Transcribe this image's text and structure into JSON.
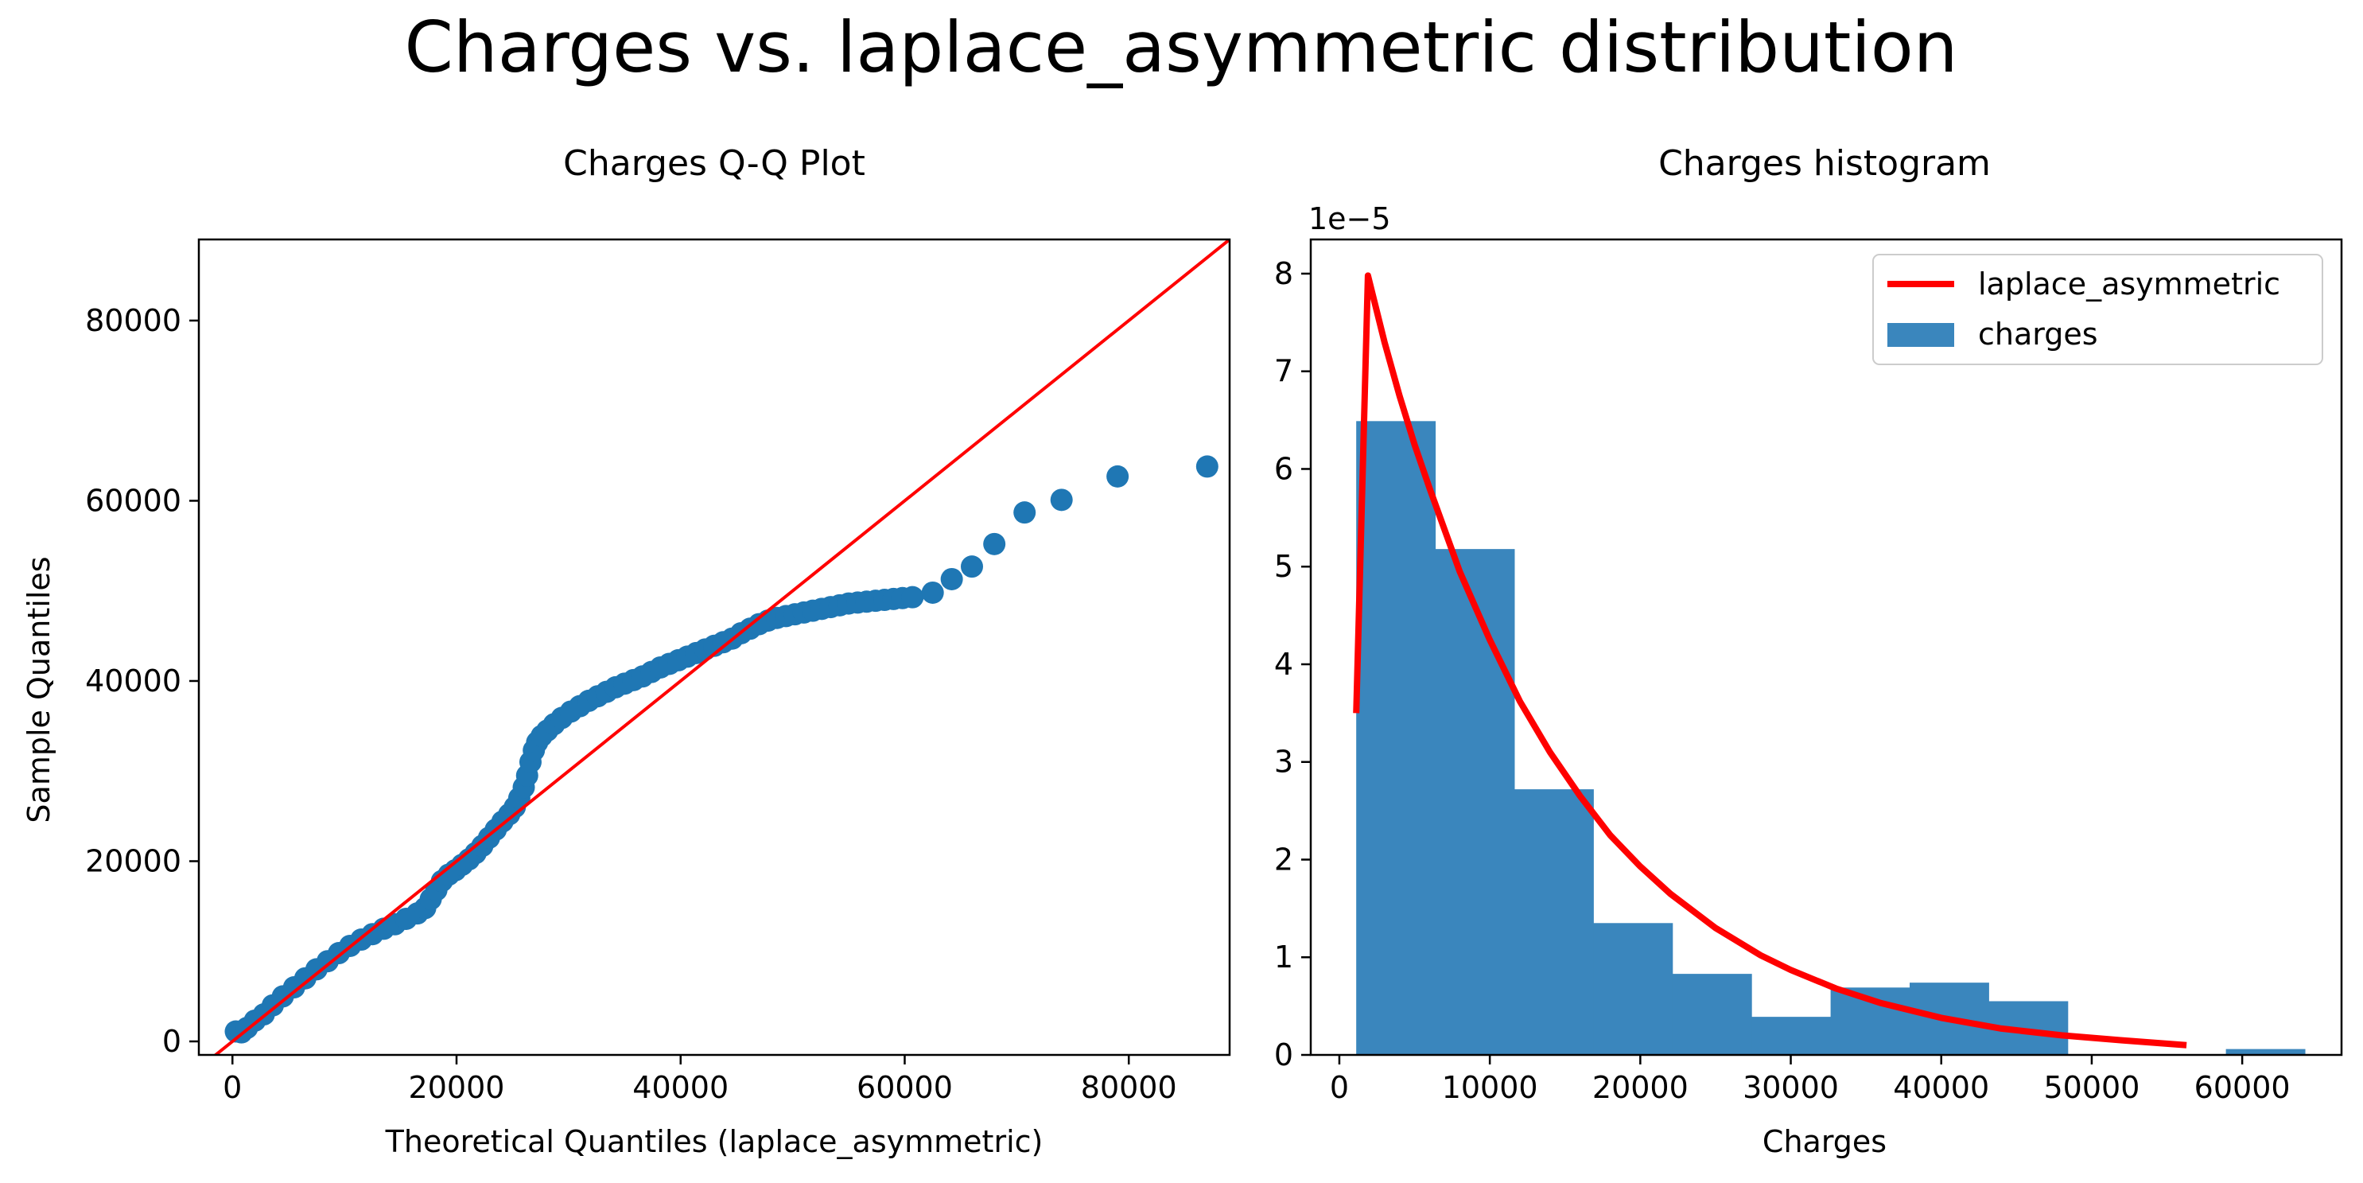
{
  "figure": {
    "title": "Charges vs. laplace_asymmetric distribution"
  },
  "colors": {
    "points": "#1f77b4",
    "bars": "#3a86bd",
    "line": "#ff0000"
  },
  "chart_data": [
    {
      "type": "scatter",
      "title": "Charges Q-Q Plot",
      "xlabel": "Theoretical Quantiles (laplace_asymmetric)",
      "ylabel": "Sample Quantiles",
      "xlim": [
        -3000,
        89000
      ],
      "ylim": [
        -1500,
        89000
      ],
      "xticks": [
        0,
        20000,
        40000,
        60000,
        80000
      ],
      "yticks": [
        0,
        20000,
        40000,
        60000,
        80000
      ],
      "reference_line": {
        "x": [
          -3000,
          89000
        ],
        "y": [
          -3000,
          89000
        ]
      },
      "series": [
        {
          "points": [
            [
              300,
              1100
            ],
            [
              800,
              1000
            ],
            [
              1300,
              1500
            ],
            [
              2000,
              2300
            ],
            [
              2800,
              3000
            ],
            [
              3600,
              4000
            ],
            [
              4500,
              5000
            ],
            [
              5500,
              6000
            ],
            [
              6500,
              7000
            ],
            [
              7500,
              8000
            ],
            [
              8500,
              8900
            ],
            [
              9500,
              9800
            ],
            [
              10500,
              10600
            ],
            [
              11500,
              11300
            ],
            [
              12500,
              11900
            ],
            [
              13500,
              12500
            ],
            [
              14500,
              13000
            ],
            [
              15500,
              13600
            ],
            [
              16500,
              14200
            ],
            [
              17200,
              14800
            ],
            [
              17700,
              15800
            ],
            [
              18200,
              16800
            ],
            [
              18700,
              17800
            ],
            [
              19300,
              18500
            ],
            [
              19900,
              19000
            ],
            [
              20500,
              19600
            ],
            [
              21100,
              20200
            ],
            [
              21700,
              20900
            ],
            [
              22300,
              21700
            ],
            [
              22900,
              22600
            ],
            [
              23500,
              23500
            ],
            [
              24100,
              24400
            ],
            [
              24700,
              25200
            ],
            [
              25200,
              26000
            ],
            [
              25600,
              27000
            ],
            [
              26000,
              28200
            ],
            [
              26300,
              29500
            ],
            [
              26600,
              31000
            ],
            [
              26900,
              32300
            ],
            [
              27200,
              33200
            ],
            [
              27600,
              33900
            ],
            [
              28100,
              34500
            ],
            [
              28700,
              35200
            ],
            [
              29400,
              35900
            ],
            [
              30200,
              36600
            ],
            [
              31000,
              37200
            ],
            [
              31800,
              37800
            ],
            [
              32600,
              38300
            ],
            [
              33400,
              38800
            ],
            [
              34200,
              39300
            ],
            [
              35000,
              39700
            ],
            [
              35800,
              40100
            ],
            [
              36600,
              40500
            ],
            [
              37400,
              41000
            ],
            [
              38200,
              41500
            ],
            [
              39000,
              41900
            ],
            [
              39800,
              42300
            ],
            [
              40600,
              42700
            ],
            [
              41400,
              43100
            ],
            [
              42200,
              43500
            ],
            [
              43000,
              43900
            ],
            [
              43800,
              44300
            ],
            [
              44600,
              44700
            ],
            [
              45400,
              45300
            ],
            [
              46200,
              45800
            ],
            [
              47000,
              46300
            ],
            [
              47800,
              46700
            ],
            [
              48600,
              47000
            ],
            [
              49400,
              47200
            ],
            [
              50200,
              47400
            ],
            [
              51000,
              47600
            ],
            [
              51800,
              47800
            ],
            [
              52600,
              48000
            ],
            [
              53400,
              48200
            ],
            [
              54200,
              48400
            ],
            [
              55000,
              48600
            ],
            [
              55800,
              48700
            ],
            [
              56600,
              48800
            ],
            [
              57400,
              48900
            ],
            [
              58200,
              49000
            ],
            [
              59000,
              49100
            ],
            [
              59800,
              49200
            ],
            [
              60700,
              49300
            ],
            [
              62500,
              49800
            ],
            [
              64200,
              51300
            ],
            [
              66000,
              52700
            ],
            [
              68000,
              55200
            ],
            [
              70700,
              58700
            ],
            [
              74000,
              60100
            ],
            [
              79000,
              62700
            ],
            [
              87000,
              63800
            ]
          ]
        }
      ]
    },
    {
      "type": "bar",
      "title": "Charges histogram",
      "xlabel": "Charges",
      "ylabel": "",
      "y_offset_text": "1e−5",
      "xlim": [
        -1900,
        66600
      ],
      "ylim": [
        0,
        8.35
      ],
      "xticks": [
        0,
        10000,
        20000,
        30000,
        40000,
        50000,
        60000
      ],
      "yticks": [
        0,
        1,
        2,
        3,
        4,
        5,
        6,
        7,
        8
      ],
      "legend": {
        "position": "top-right",
        "entries": [
          "laplace_asymmetric",
          "charges"
        ]
      },
      "bins": [
        1122,
        6376,
        11630,
        16884,
        22138,
        27392,
        32646,
        37900,
        43154,
        48408,
        53662,
        58916,
        64170
      ],
      "series": [
        {
          "name": "charges",
          "kind": "histogram",
          "values": [
            6.49,
            5.18,
            2.72,
            1.35,
            0.83,
            0.39,
            0.69,
            0.74,
            0.55,
            0.0,
            0.0,
            0.06
          ]
        },
        {
          "name": "laplace_asymmetric",
          "kind": "line",
          "x": [
            1122,
            1900,
            3000,
            4000,
            5000,
            6000,
            8000,
            10000,
            12000,
            14000,
            16000,
            18000,
            20000,
            22000,
            25000,
            28000,
            30000,
            33000,
            36000,
            40000,
            44000,
            48000,
            52000,
            56300
          ],
          "y": [
            3.5,
            7.98,
            7.3,
            6.75,
            6.25,
            5.8,
            4.95,
            4.25,
            3.62,
            3.1,
            2.65,
            2.25,
            1.93,
            1.65,
            1.3,
            1.02,
            0.87,
            0.68,
            0.53,
            0.38,
            0.27,
            0.2,
            0.15,
            0.1
          ]
        }
      ]
    }
  ]
}
